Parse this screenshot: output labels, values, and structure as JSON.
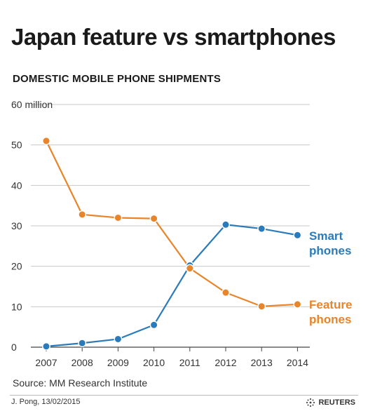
{
  "title": "Japan feature vs smartphones",
  "subtitle": "DOMESTIC MOBILE PHONE SHIPMENTS",
  "source": "Source: MM Research Institute",
  "credit": "J. Pong, 13/02/2015",
  "brand": "REUTERS",
  "colors": {
    "smart": "#2b7bba",
    "feature": "#e8842a",
    "grid": "#c8c8c8",
    "axis": "#444444"
  },
  "chart_data": {
    "type": "line",
    "x": [
      "2007",
      "2008",
      "2009",
      "2010",
      "2011",
      "2012",
      "2013",
      "2014"
    ],
    "ylim": [
      0,
      60
    ],
    "yticks": [
      "0",
      "10",
      "20",
      "30",
      "40",
      "50",
      "60 million"
    ],
    "ytick_values": [
      0,
      10,
      20,
      30,
      40,
      50,
      60
    ],
    "grid": true,
    "series": [
      {
        "name": "Smart phones",
        "label_line1": "Smart",
        "label_line2": "phones",
        "color": "#2b7bba",
        "values": [
          0.2,
          1.0,
          2.0,
          5.5,
          20.2,
          30.3,
          29.3,
          27.7
        ]
      },
      {
        "name": "Feature phones",
        "label_line1": "Feature",
        "label_line2": "phones",
        "color": "#e8842a",
        "values": [
          51.0,
          32.8,
          32.0,
          31.8,
          19.5,
          13.5,
          10.1,
          10.6
        ]
      }
    ]
  }
}
